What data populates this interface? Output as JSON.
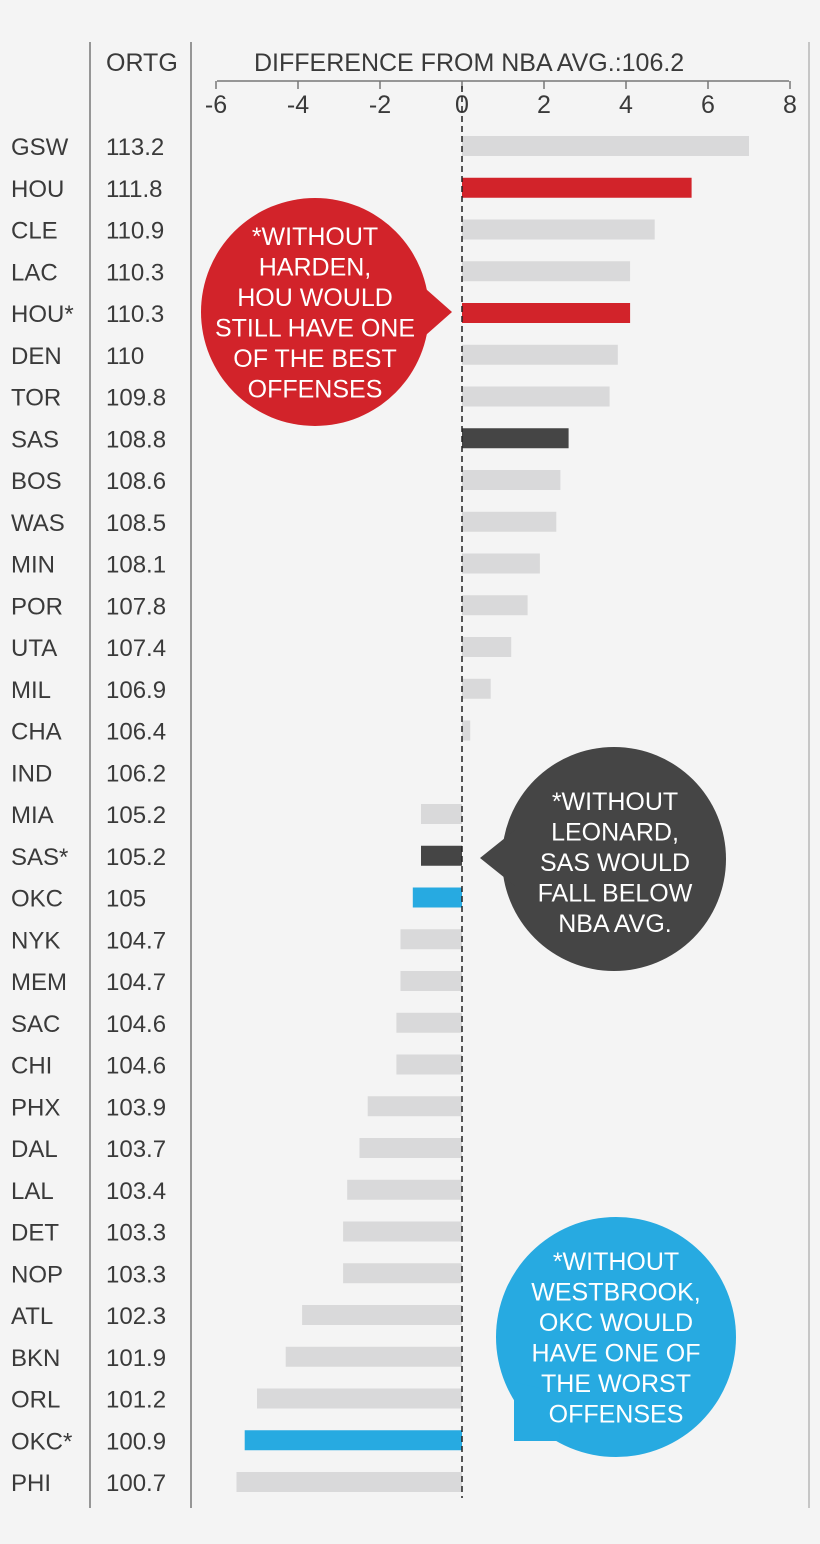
{
  "headers": {
    "ortg": "ORTG",
    "difference": "DIFFERENCE FROM NBA AVG.:106.2"
  },
  "colors": {
    "background": "#f4f4f4",
    "default_bar": "#d9d9da",
    "hou": "#d2232a",
    "sas": "#454545",
    "okc": "#27aae1",
    "text": "#3a3a3a",
    "rules": "#777777"
  },
  "chart_data": {
    "type": "bar",
    "orientation": "horizontal",
    "title": "DIFFERENCE FROM NBA AVG.:106.2",
    "baseline": 106.2,
    "xlim": [
      -6,
      8
    ],
    "xticks": [
      "-6",
      "-4",
      "-2",
      "0",
      "2",
      "4",
      "6",
      "8"
    ],
    "categories": [
      "GSW",
      "HOU",
      "CLE",
      "LAC",
      "HOU*",
      "DEN",
      "TOR",
      "SAS",
      "BOS",
      "WAS",
      "MIN",
      "POR",
      "UTA",
      "MIL",
      "CHA",
      "IND",
      "MIA",
      "SAS*",
      "OKC",
      "NYK",
      "MEM",
      "SAC",
      "CHI",
      "PHX",
      "DAL",
      "LAL",
      "DET",
      "NOP",
      "ATL",
      "BKN",
      "ORL",
      "OKC*",
      "PHI"
    ],
    "ortg": [
      "113.2",
      "111.8",
      "110.9",
      "110.3",
      "110.3",
      "110",
      "109.8",
      "108.8",
      "108.6",
      "108.5",
      "108.1",
      "107.8",
      "107.4",
      "106.9",
      "106.4",
      "106.2",
      "105.2",
      "105.2",
      "105",
      "104.7",
      "104.7",
      "104.6",
      "104.6",
      "103.9",
      "103.7",
      "103.4",
      "103.3",
      "103.3",
      "102.3",
      "101.9",
      "101.2",
      "100.9",
      "100.7"
    ],
    "values": [
      7.0,
      5.6,
      4.7,
      4.1,
      4.1,
      3.8,
      3.6,
      2.6,
      2.4,
      2.3,
      1.9,
      1.6,
      1.2,
      0.7,
      0.2,
      0.0,
      -1.0,
      -1.0,
      -1.2,
      -1.5,
      -1.5,
      -1.6,
      -1.6,
      -2.3,
      -2.5,
      -2.8,
      -2.9,
      -2.9,
      -3.9,
      -4.3,
      -5.0,
      -5.3,
      -5.5
    ],
    "highlights": {
      "HOU": "hou",
      "HOU*": "hou",
      "SAS": "sas",
      "SAS*": "sas",
      "OKC": "okc",
      "OKC*": "okc"
    }
  },
  "callouts": {
    "hou": [
      "*WITHOUT",
      "HARDEN,",
      "HOU WOULD",
      "STILL HAVE ONE",
      "OF THE BEST",
      "OFFENSES"
    ],
    "sas": [
      "*WITHOUT",
      "LEONARD,",
      "SAS WOULD",
      "FALL BELOW",
      "NBA AVG."
    ],
    "okc": [
      "*WITHOUT",
      "WESTBROOK,",
      "OKC WOULD",
      "HAVE ONE OF",
      "THE WORST",
      "OFFENSES"
    ]
  }
}
